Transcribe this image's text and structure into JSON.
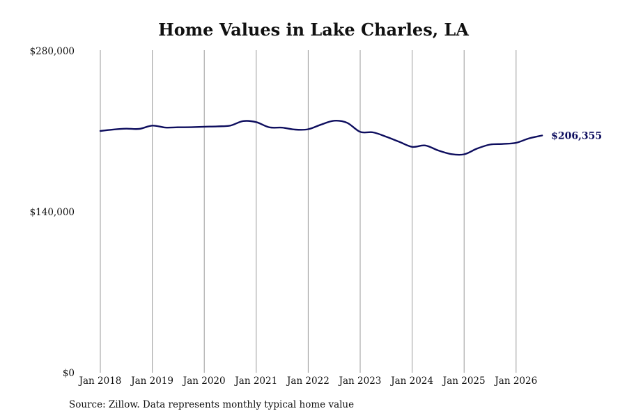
{
  "chart_data": {
    "type": "line",
    "title": "Home Values in Lake Charles, LA",
    "xlabel": "",
    "ylabel": "",
    "ylim": [
      0,
      280000
    ],
    "xlim": [
      "2018-01",
      "2026-07"
    ],
    "x_ticks": [
      "Jan 2018",
      "Jan 2019",
      "Jan 2020",
      "Jan 2021",
      "Jan 2022",
      "Jan 2023",
      "Jan 2024",
      "Jan 2025",
      "Jan 2026"
    ],
    "y_ticks": [
      "$0",
      "$140,000",
      "$280,000"
    ],
    "grid": {
      "vertical": true,
      "horizontal": false
    },
    "legend": "none",
    "end_label": "$206,355",
    "line_color": "#0d0d5e",
    "series": [
      {
        "x": [
          "2018-01",
          "2018-04",
          "2018-07",
          "2018-10",
          "2019-01",
          "2019-04",
          "2019-07",
          "2019-10",
          "2020-01",
          "2020-04",
          "2020-07",
          "2020-10",
          "2021-01",
          "2021-04",
          "2021-07",
          "2021-10",
          "2022-01",
          "2022-04",
          "2022-07",
          "2022-10",
          "2023-01",
          "2023-04",
          "2023-07",
          "2023-10",
          "2024-01",
          "2024-04",
          "2024-07",
          "2024-10",
          "2025-01",
          "2025-04",
          "2025-07",
          "2025-10",
          "2026-01",
          "2026-04",
          "2026-07"
        ],
        "values": [
          210300,
          211600,
          212300,
          212100,
          215000,
          213300,
          213500,
          213600,
          214000,
          214300,
          215000,
          218900,
          218000,
          213500,
          213200,
          211500,
          211800,
          215900,
          219200,
          217400,
          209500,
          209100,
          205300,
          200900,
          196500,
          197700,
          193400,
          190200,
          190000,
          195000,
          198500,
          199000,
          200000,
          203900,
          206355
        ]
      }
    ]
  },
  "footer": {
    "source": "Source: Zillow. Data represents monthly typical home value"
  }
}
